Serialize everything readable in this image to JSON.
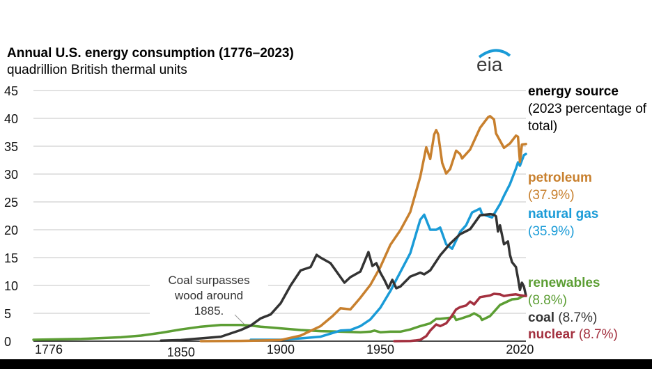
{
  "chart_data": {
    "type": "line",
    "title": "Annual U.S. energy consumption (1776–2023)",
    "subtitle": "quadrillion British thermal units",
    "xlim": [
      1776,
      2023
    ],
    "ylim": [
      0,
      45
    ],
    "x_ticks": [
      "1776",
      "1850",
      "1900",
      "1950",
      "2020"
    ],
    "y_ticks": [
      "0",
      "5",
      "10",
      "15",
      "20",
      "25",
      "30",
      "35",
      "40",
      "45"
    ],
    "grid": true,
    "legend_title": "energy source",
    "legend_subtitle": "(2023 percentage of total)",
    "legend_placement": "right",
    "annotation": [
      "Coal surpasses",
      "wood around",
      "1885."
    ],
    "series": [
      {
        "name": "petroleum",
        "share": "(37.9%)",
        "color": "#c8802e",
        "points": [
          [
            1860,
            0
          ],
          [
            1880,
            0.05
          ],
          [
            1900,
            0.2
          ],
          [
            1910,
            1.0
          ],
          [
            1920,
            2.7
          ],
          [
            1926,
            4.5
          ],
          [
            1930,
            5.9
          ],
          [
            1935,
            5.7
          ],
          [
            1940,
            7.8
          ],
          [
            1945,
            10.1
          ],
          [
            1950,
            13.3
          ],
          [
            1955,
            17.3
          ],
          [
            1960,
            19.9
          ],
          [
            1965,
            23.2
          ],
          [
            1970,
            29.5
          ],
          [
            1973,
            34.8
          ],
          [
            1975,
            32.7
          ],
          [
            1977,
            37.1
          ],
          [
            1978,
            37.9
          ],
          [
            1979,
            37.1
          ],
          [
            1981,
            32.0
          ],
          [
            1983,
            30.1
          ],
          [
            1985,
            30.9
          ],
          [
            1988,
            34.2
          ],
          [
            1990,
            33.6
          ],
          [
            1991,
            32.8
          ],
          [
            1995,
            34.4
          ],
          [
            2000,
            38.3
          ],
          [
            2004,
            40.2
          ],
          [
            2005,
            40.4
          ],
          [
            2007,
            39.8
          ],
          [
            2008,
            37.3
          ],
          [
            2010,
            36.0
          ],
          [
            2012,
            34.7
          ],
          [
            2015,
            35.5
          ],
          [
            2018,
            36.9
          ],
          [
            2019,
            36.7
          ],
          [
            2020,
            32.2
          ],
          [
            2021,
            35.3
          ],
          [
            2023,
            35.4
          ]
        ]
      },
      {
        "name": "natural gas",
        "share": "(35.9%)",
        "color": "#1a9bd7",
        "points": [
          [
            1885,
            0.25
          ],
          [
            1900,
            0.25
          ],
          [
            1910,
            0.5
          ],
          [
            1920,
            0.8
          ],
          [
            1930,
            1.9
          ],
          [
            1935,
            2.0
          ],
          [
            1940,
            2.7
          ],
          [
            1945,
            3.9
          ],
          [
            1950,
            6.0
          ],
          [
            1955,
            9.0
          ],
          [
            1960,
            12.4
          ],
          [
            1965,
            15.8
          ],
          [
            1970,
            21.8
          ],
          [
            1972,
            22.7
          ],
          [
            1975,
            20.0
          ],
          [
            1978,
            20.0
          ],
          [
            1980,
            20.4
          ],
          [
            1983,
            17.4
          ],
          [
            1986,
            16.6
          ],
          [
            1990,
            19.6
          ],
          [
            1993,
            20.8
          ],
          [
            1996,
            23.1
          ],
          [
            2000,
            23.8
          ],
          [
            2001,
            22.8
          ],
          [
            2006,
            22.2
          ],
          [
            2010,
            24.6
          ],
          [
            2012,
            26.1
          ],
          [
            2015,
            28.2
          ],
          [
            2018,
            31.0
          ],
          [
            2019,
            32.1
          ],
          [
            2020,
            31.5
          ],
          [
            2022,
            33.4
          ],
          [
            2023,
            33.6
          ]
        ]
      },
      {
        "name": "renewables",
        "share": "(8.8%)",
        "color": "#5c9e34",
        "points": [
          [
            1776,
            0.25
          ],
          [
            1800,
            0.4
          ],
          [
            1820,
            0.7
          ],
          [
            1830,
            1.0
          ],
          [
            1840,
            1.5
          ],
          [
            1850,
            2.1
          ],
          [
            1860,
            2.6
          ],
          [
            1870,
            2.9
          ],
          [
            1880,
            2.9
          ],
          [
            1885,
            2.8
          ],
          [
            1890,
            2.6
          ],
          [
            1900,
            2.3
          ],
          [
            1910,
            2.0
          ],
          [
            1920,
            1.8
          ],
          [
            1930,
            1.7
          ],
          [
            1940,
            1.6
          ],
          [
            1945,
            1.7
          ],
          [
            1947,
            1.9
          ],
          [
            1950,
            1.6
          ],
          [
            1955,
            1.7
          ],
          [
            1960,
            1.7
          ],
          [
            1965,
            2.1
          ],
          [
            1970,
            2.7
          ],
          [
            1975,
            3.2
          ],
          [
            1978,
            4.0
          ],
          [
            1980,
            4.0
          ],
          [
            1985,
            4.2
          ],
          [
            1987,
            4.5
          ],
          [
            1988,
            3.8
          ],
          [
            1990,
            4.0
          ],
          [
            1995,
            4.6
          ],
          [
            1997,
            5.0
          ],
          [
            2000,
            4.4
          ],
          [
            2001,
            3.8
          ],
          [
            2005,
            4.5
          ],
          [
            2008,
            5.7
          ],
          [
            2010,
            6.5
          ],
          [
            2013,
            7.0
          ],
          [
            2016,
            7.5
          ],
          [
            2019,
            7.6
          ],
          [
            2021,
            8.0
          ],
          [
            2023,
            8.2
          ]
        ]
      },
      {
        "name": "coal",
        "share": "(8.7%)",
        "color": "#333333",
        "points": [
          [
            1840,
            0.1
          ],
          [
            1850,
            0.2
          ],
          [
            1860,
            0.5
          ],
          [
            1870,
            0.8
          ],
          [
            1880,
            2.0
          ],
          [
            1885,
            2.8
          ],
          [
            1890,
            4.1
          ],
          [
            1895,
            4.8
          ],
          [
            1900,
            6.8
          ],
          [
            1905,
            10.0
          ],
          [
            1910,
            12.7
          ],
          [
            1915,
            13.3
          ],
          [
            1918,
            15.5
          ],
          [
            1920,
            15.0
          ],
          [
            1925,
            14.0
          ],
          [
            1932,
            10.5
          ],
          [
            1935,
            11.5
          ],
          [
            1940,
            12.5
          ],
          [
            1944,
            16.0
          ],
          [
            1946,
            13.5
          ],
          [
            1948,
            14.0
          ],
          [
            1950,
            12.3
          ],
          [
            1952,
            11.0
          ],
          [
            1954,
            9.5
          ],
          [
            1956,
            11.0
          ],
          [
            1958,
            9.5
          ],
          [
            1960,
            9.8
          ],
          [
            1965,
            11.6
          ],
          [
            1970,
            12.3
          ],
          [
            1972,
            12.0
          ],
          [
            1975,
            12.7
          ],
          [
            1980,
            15.4
          ],
          [
            1985,
            17.5
          ],
          [
            1990,
            19.2
          ],
          [
            1995,
            20.1
          ],
          [
            2000,
            22.6
          ],
          [
            2005,
            22.8
          ],
          [
            2007,
            22.7
          ],
          [
            2008,
            22.4
          ],
          [
            2009,
            19.7
          ],
          [
            2010,
            20.8
          ],
          [
            2012,
            17.4
          ],
          [
            2014,
            17.9
          ],
          [
            2015,
            15.5
          ],
          [
            2016,
            14.2
          ],
          [
            2018,
            13.3
          ],
          [
            2019,
            11.3
          ],
          [
            2020,
            9.2
          ],
          [
            2021,
            10.5
          ],
          [
            2022,
            9.8
          ],
          [
            2023,
            8.2
          ]
        ]
      },
      {
        "name": "nuclear",
        "share": "(8.7%)",
        "color": "#a3303f",
        "points": [
          [
            1957,
            0
          ],
          [
            1965,
            0.04
          ],
          [
            1968,
            0.14
          ],
          [
            1970,
            0.24
          ],
          [
            1973,
            0.9
          ],
          [
            1975,
            1.9
          ],
          [
            1978,
            3.0
          ],
          [
            1980,
            2.7
          ],
          [
            1983,
            3.2
          ],
          [
            1985,
            4.1
          ],
          [
            1988,
            5.7
          ],
          [
            1990,
            6.1
          ],
          [
            1993,
            6.4
          ],
          [
            1995,
            7.1
          ],
          [
            1997,
            6.6
          ],
          [
            2000,
            7.9
          ],
          [
            2005,
            8.2
          ],
          [
            2007,
            8.5
          ],
          [
            2010,
            8.4
          ],
          [
            2012,
            8.1
          ],
          [
            2015,
            8.3
          ],
          [
            2018,
            8.4
          ],
          [
            2020,
            8.25
          ],
          [
            2023,
            8.1
          ]
        ]
      }
    ]
  },
  "logo": {
    "text": "eia"
  }
}
